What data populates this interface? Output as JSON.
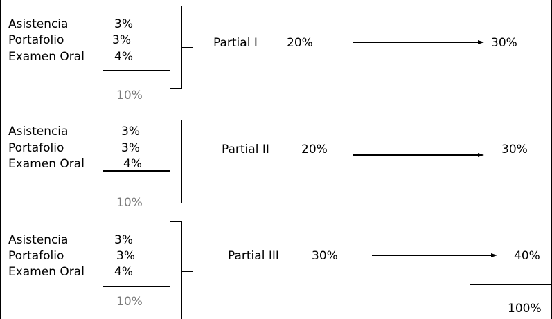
{
  "blocks": [
    {
      "rows": [
        {
          "label": "Asistencia",
          "value": "3%"
        },
        {
          "label": "Portafolio",
          "value": "3%"
        },
        {
          "label": "Examen Oral",
          "value": "4%"
        }
      ],
      "subtotal": "10%",
      "partial": "Partial I",
      "partial_pct": "20%",
      "result": "30%"
    },
    {
      "rows": [
        {
          "label": "Asistencia",
          "value": "3%"
        },
        {
          "label": "Portafolio",
          "value": "3%"
        },
        {
          "label": "Examen Oral",
          "value": "4%"
        }
      ],
      "subtotal": "10%",
      "partial": "Partial II",
      "partial_pct": "20%",
      "result": "30%"
    },
    {
      "rows": [
        {
          "label": "Asistencia",
          "value": "3%"
        },
        {
          "label": "Portafolio",
          "value": "3%"
        },
        {
          "label": "Examen Oral",
          "value": "4%"
        }
      ],
      "subtotal": "10%",
      "partial": "Partial III",
      "partial_pct": "30%",
      "result": "40%"
    }
  ],
  "grand_total": "100%"
}
